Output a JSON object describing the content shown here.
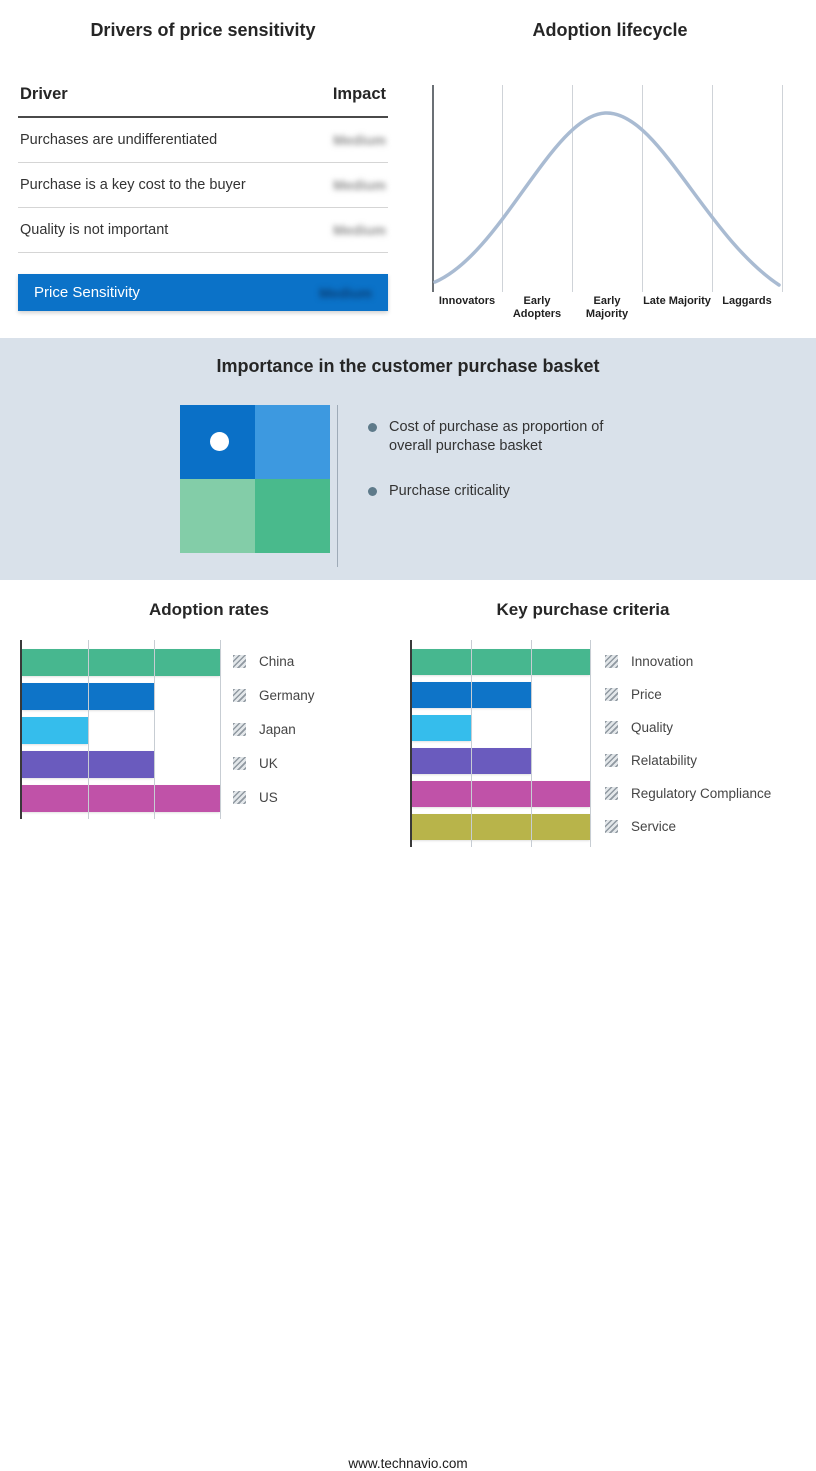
{
  "colors": {
    "accent_blue": "#0B72C8",
    "band_bg": "#D9E1EA",
    "curve": "#A9BBD2"
  },
  "drivers_panel": {
    "title": "Drivers of price sensitivity",
    "col_driver": "Driver",
    "col_impact": "Impact",
    "rows": [
      {
        "driver": "Purchases are undifferentiated",
        "impact": "Medium"
      },
      {
        "driver": "Purchase is a key cost to the buyer",
        "impact": "Medium"
      },
      {
        "driver": "Quality is not important",
        "impact": "Medium"
      }
    ],
    "summary": {
      "label": "Price Sensitivity",
      "impact": "Medium"
    }
  },
  "lifecycle_panel": {
    "title": "Adoption lifecycle",
    "stages": [
      "Innovators",
      "Early Adopters",
      "Early Majority",
      "Late Majority",
      "Laggards"
    ]
  },
  "basket_panel": {
    "title": "Importance in the customer purchase basket",
    "bullets": [
      "Cost of purchase as proportion of overall purchase basket",
      "Purchase criticality"
    ],
    "quadrant_colors": [
      "#0A70C7",
      "#3D99E0",
      "#83CDA8",
      "#49BA8C"
    ]
  },
  "chart_data": [
    {
      "type": "bar",
      "orientation": "horizontal",
      "title": "Adoption rates",
      "categories": [
        "China",
        "Germany",
        "Japan",
        "UK",
        "US"
      ],
      "values": [
        3,
        2,
        1,
        2,
        3
      ],
      "xlim": [
        0,
        3
      ],
      "grid": true,
      "legend_position": "right",
      "colors": [
        "#47B78F",
        "#0E74C8",
        "#35BDEC",
        "#6A5BBE",
        "#C052A8"
      ]
    },
    {
      "type": "bar",
      "orientation": "horizontal",
      "title": "Key purchase criteria",
      "categories": [
        "Innovation",
        "Price",
        "Quality",
        "Relatability",
        "Regulatory Compliance",
        "Service"
      ],
      "values": [
        3,
        2,
        1,
        2,
        3,
        3
      ],
      "xlim": [
        0,
        3
      ],
      "grid": true,
      "legend_position": "right",
      "colors": [
        "#47B78F",
        "#0E74C8",
        "#35BDEC",
        "#6A5BBE",
        "#C052A8",
        "#B8B44A"
      ]
    }
  ],
  "footer": {
    "website": "www.technavio.com"
  }
}
